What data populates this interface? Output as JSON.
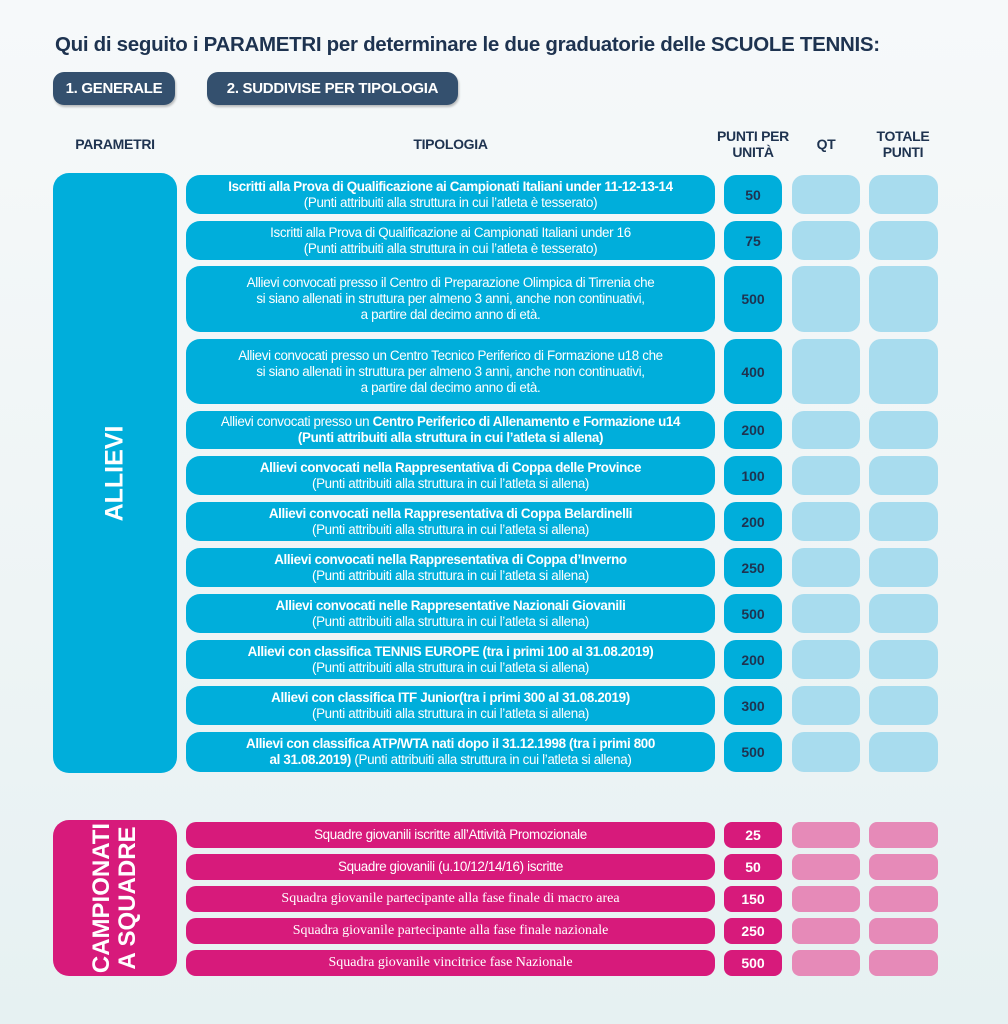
{
  "title": "Qui di seguito i PARAMETRI per determinare le due graduatorie delle SCUOLE TENNIS:",
  "buttons": {
    "generale": "1. GENERALE",
    "suddivise": "2. SUDDIVISE PER TIPOLOGIA"
  },
  "headers": {
    "parametri": "PARAMETRI",
    "tipologia": "TIPOLOGIA",
    "punti_1": "PUNTI PER",
    "punti_2": "UNITÀ",
    "qt": "QT",
    "totale_1": "TOTALE",
    "totale_2": "PUNTI"
  },
  "colors": {
    "cyan": "#00aedb",
    "cyan_light": "#a8dcee",
    "pink": "#d71a7b",
    "pink_light": "#e68ab8",
    "navy": "#34506e"
  },
  "allievi": {
    "label": "ALLIEVI",
    "rows": [
      {
        "lines": [
          [
            {
              "t": "Iscritti alla Prova di Qualificazione ai Campionati Italiani under 11-12-13-14",
              "b": true
            }
          ],
          [
            {
              "t": "(Punti attribuiti alla struttura in cui l’atleta è tesserato)",
              "b": false
            }
          ]
        ],
        "points": "50"
      },
      {
        "lines": [
          [
            {
              "t": "Iscritti alla Prova di Qualificazione ai Campionati Italiani under 16",
              "b": false
            }
          ],
          [
            {
              "t": "(Punti attribuiti alla struttura in cui l’atleta è tesserato)",
              "b": false
            }
          ]
        ],
        "points": "75"
      },
      {
        "lines": [
          [
            {
              "t": "Allievi convocati presso il Centro di Preparazione Olimpica di Tirrenia che",
              "b": false
            }
          ],
          [
            {
              "t": "si siano allenati in struttura per almeno 3 anni, anche non continuativi,",
              "b": false
            }
          ],
          [
            {
              "t": "a partire dal decimo anno di età.",
              "b": false
            }
          ]
        ],
        "points": "500"
      },
      {
        "lines": [
          [
            {
              "t": "Allievi convocati presso un Centro Tecnico Periferico di Formazione u18 che",
              "b": false
            }
          ],
          [
            {
              "t": "si siano allenati in struttura per almeno 3 anni, anche non continuativi,",
              "b": false
            }
          ],
          [
            {
              "t": "a partire dal decimo anno di età.",
              "b": false
            }
          ]
        ],
        "points": "400"
      },
      {
        "lines": [
          [
            {
              "t": "Allievi convocati presso un ",
              "b": false
            },
            {
              "t": "Centro Periferico di Allenamento e Formazione u14",
              "b": true
            }
          ],
          [
            {
              "t": "(Punti attribuiti alla struttura in cui l’atleta si allena)",
              "b": true
            }
          ]
        ],
        "points": "200"
      },
      {
        "lines": [
          [
            {
              "t": "Allievi convocati nella Rappresentativa di Coppa delle Province",
              "b": true
            }
          ],
          [
            {
              "t": "(Punti attribuiti alla struttura in cui l’atleta si allena)",
              "b": false
            }
          ]
        ],
        "points": "100"
      },
      {
        "lines": [
          [
            {
              "t": "Allievi convocati nella Rappresentativa di Coppa Belardinelli",
              "b": true
            }
          ],
          [
            {
              "t": "(Punti attribuiti alla struttura in cui l’atleta si allena)",
              "b": false
            }
          ]
        ],
        "points": "200"
      },
      {
        "lines": [
          [
            {
              "t": "Allievi convocati nella Rappresentativa di Coppa d’Inverno",
              "b": true
            }
          ],
          [
            {
              "t": "(Punti attribuiti alla struttura in cui l’atleta si allena)",
              "b": false
            }
          ]
        ],
        "points": "250"
      },
      {
        "lines": [
          [
            {
              "t": "Allievi convocati nelle Rappresentative Nazionali Giovanili",
              "b": true
            }
          ],
          [
            {
              "t": "(Punti attribuiti alla struttura in cui l’atleta si allena)",
              "b": false
            }
          ]
        ],
        "points": "500"
      },
      {
        "lines": [
          [
            {
              "t": "Allievi con classifica TENNIS EUROPE (tra i primi 100 al 31.08.2019)",
              "b": true
            }
          ],
          [
            {
              "t": "(Punti attribuiti alla struttura in cui l’atleta si allena)",
              "b": false
            }
          ]
        ],
        "points": "200"
      },
      {
        "lines": [
          [
            {
              "t": "Allievi con classifica ITF Junior(tra i primi 300 al 31.08.2019)",
              "b": true
            }
          ],
          [
            {
              "t": "(Punti attribuiti alla struttura in cui l’atleta si allena)",
              "b": false
            }
          ]
        ],
        "points": "300"
      },
      {
        "lines": [
          [
            {
              "t": "Allievi con classifica ATP/WTA nati dopo il 31.12.1998 (tra i primi 800",
              "b": true
            }
          ],
          [
            {
              "t": "al 31.08.2019)",
              "b": true
            },
            {
              "t": "  (Punti attribuiti alla struttura in cui l’atleta si allena)",
              "b": false
            }
          ]
        ],
        "points": "500"
      }
    ]
  },
  "squadre": {
    "label_1": "CAMPIONATI",
    "label_2": "A SQUADRE",
    "rows": [
      {
        "text": "Squadre giovanili iscritte all’Attività Promozionale",
        "serif": false,
        "points": "25"
      },
      {
        "text": "Squadre giovanili (u.10/12/14/16) iscritte",
        "serif": false,
        "points": "50"
      },
      {
        "text": "Squadra giovanile partecipante alla fase finale di macro area",
        "serif": true,
        "points": "150"
      },
      {
        "text": "Squadra giovanile partecipante alla fase finale nazionale",
        "serif": true,
        "points": "250"
      },
      {
        "text": "Squadra giovanile vincitrice fase Nazionale",
        "serif": true,
        "points": "500"
      }
    ]
  }
}
